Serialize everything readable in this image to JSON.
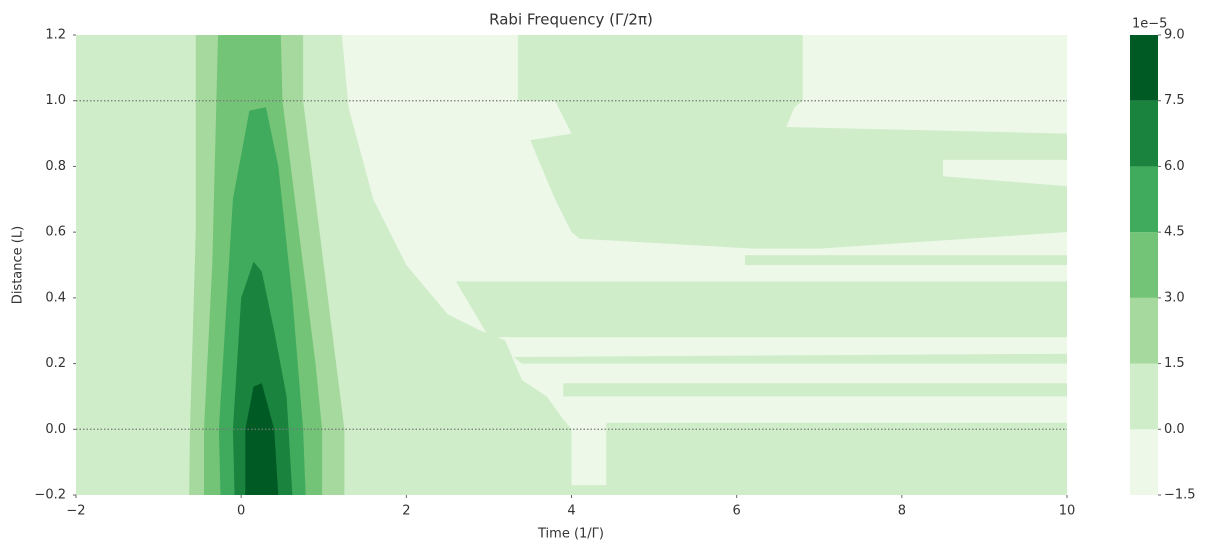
{
  "chart_data": {
    "type": "contourf",
    "title": "Rabi Frequency (Γ/2π)",
    "xlabel": "Time (1/Γ)",
    "ylabel": "Distance (L)",
    "xlim": [
      -2,
      10
    ],
    "ylim": [
      -0.2,
      1.2
    ],
    "xticks": [
      {
        "value": -2,
        "label": "−2"
      },
      0,
      2,
      4,
      6,
      8,
      10
    ],
    "yticks": [
      {
        "value": -0.2,
        "label": "−0.2"
      },
      {
        "value": 0,
        "label": "0.0"
      },
      {
        "value": 0.2,
        "label": "0.2"
      },
      {
        "value": 0.4,
        "label": "0.4"
      },
      {
        "value": 0.6,
        "label": "0.6"
      },
      {
        "value": 0.8,
        "label": "0.8"
      },
      {
        "value": 1.0,
        "label": "1.0"
      },
      {
        "value": 1.2,
        "label": "1.2"
      }
    ],
    "hlines": [
      1.0,
      0.0
    ],
    "colorbar_offset": "1e−5",
    "levels": [
      {
        "value": -1.5,
        "label": "−1.5"
      },
      {
        "value": 0,
        "label": "0.0"
      },
      {
        "value": 1.5,
        "label": "1.5"
      },
      {
        "value": 3,
        "label": "3.0"
      },
      {
        "value": 4.5,
        "label": "4.5"
      },
      {
        "value": 6,
        "label": "6.0"
      },
      {
        "value": 7.5,
        "label": "7.5"
      },
      {
        "value": 9,
        "label": "9.0"
      }
    ],
    "colors": [
      "#edf8e9",
      "#d0edca",
      "#a5d99d",
      "#73c476",
      "#40aa5d",
      "#1a843f",
      "#005a24"
    ],
    "regions": [
      {
        "range": [
          0,
          1.5
        ],
        "points": [
          [
            -2,
            -0.2
          ],
          [
            10,
            -0.2
          ],
          [
            10,
            1.2
          ],
          [
            -2,
            1.2
          ]
        ]
      },
      {
        "range": [
          -1.5,
          0
        ],
        "points": [
          [
            1.22,
            1.2
          ],
          [
            10,
            1.2
          ],
          [
            10,
            0.02
          ],
          [
            4.42,
            0.02
          ],
          [
            4.42,
            -0.17
          ],
          [
            4.0,
            -0.17
          ],
          [
            4.0,
            0.0
          ],
          [
            3.9,
            0.03
          ],
          [
            3.7,
            0.1
          ],
          [
            3.4,
            0.15
          ],
          [
            3.2,
            0.27
          ],
          [
            2.9,
            0.3
          ],
          [
            2.5,
            0.35
          ],
          [
            2.0,
            0.5
          ],
          [
            1.6,
            0.7
          ],
          [
            1.3,
            0.98
          ]
        ]
      },
      {
        "range": [
          0,
          1.5
        ],
        "points": [
          [
            3.35,
            1.2
          ],
          [
            6.8,
            1.2
          ],
          [
            6.8,
            1.0
          ],
          [
            6.7,
            0.98
          ],
          [
            6.6,
            0.92
          ],
          [
            10,
            0.9
          ],
          [
            10,
            0.82
          ],
          [
            8.5,
            0.82
          ],
          [
            8.5,
            0.77
          ],
          [
            10,
            0.74
          ],
          [
            10,
            0.6
          ],
          [
            7.0,
            0.55
          ],
          [
            6.2,
            0.55
          ],
          [
            4.1,
            0.58
          ],
          [
            4.0,
            0.6
          ],
          [
            3.8,
            0.7
          ],
          [
            3.5,
            0.88
          ],
          [
            4.0,
            0.9
          ],
          [
            3.8,
            1.0
          ],
          [
            3.35,
            1.0
          ]
        ]
      },
      {
        "range": [
          0,
          1.5
        ],
        "points": [
          [
            6.1,
            0.53
          ],
          [
            10,
            0.53
          ],
          [
            10,
            0.5
          ],
          [
            6.1,
            0.5
          ]
        ]
      },
      {
        "range": [
          0,
          1.5
        ],
        "points": [
          [
            2.6,
            0.45
          ],
          [
            10,
            0.45
          ],
          [
            10,
            0.28
          ],
          [
            3.0,
            0.28
          ]
        ]
      },
      {
        "range": [
          0,
          1.5
        ],
        "points": [
          [
            3.3,
            0.22
          ],
          [
            10,
            0.23
          ],
          [
            10,
            0.2
          ],
          [
            3.4,
            0.2
          ]
        ]
      },
      {
        "range": [
          0,
          1.5
        ],
        "points": [
          [
            3.9,
            0.14
          ],
          [
            10,
            0.14
          ],
          [
            10,
            0.1
          ],
          [
            3.9,
            0.1
          ]
        ]
      },
      {
        "range": [
          1.5,
          3
        ],
        "points": [
          [
            -0.55,
            1.2
          ],
          [
            0.75,
            1.2
          ],
          [
            0.75,
            1.0
          ],
          [
            1.05,
            0.4
          ],
          [
            1.25,
            0.0
          ],
          [
            1.25,
            -0.2
          ],
          [
            -0.63,
            -0.2
          ],
          [
            -0.62,
            0.0
          ],
          [
            -0.55,
            0.6
          ]
        ]
      },
      {
        "range": [
          3,
          4.5
        ],
        "points": [
          [
            -0.28,
            1.2
          ],
          [
            0.48,
            1.2
          ],
          [
            0.5,
            1.0
          ],
          [
            0.7,
            0.6
          ],
          [
            0.9,
            0.2
          ],
          [
            0.98,
            0.0
          ],
          [
            0.98,
            -0.2
          ],
          [
            -0.45,
            -0.2
          ],
          [
            -0.45,
            0.0
          ],
          [
            -0.35,
            0.5
          ]
        ]
      },
      {
        "range": [
          4.5,
          6
        ],
        "points": [
          [
            0.1,
            0.97
          ],
          [
            0.3,
            0.98
          ],
          [
            0.45,
            0.8
          ],
          [
            0.62,
            0.4
          ],
          [
            0.75,
            0.0
          ],
          [
            0.78,
            -0.2
          ],
          [
            -0.25,
            -0.2
          ],
          [
            -0.27,
            0.0
          ],
          [
            -0.1,
            0.7
          ]
        ]
      },
      {
        "range": [
          6,
          7.5
        ],
        "points": [
          [
            0.15,
            0.51
          ],
          [
            0.25,
            0.48
          ],
          [
            0.4,
            0.3
          ],
          [
            0.55,
            0.1
          ],
          [
            0.62,
            -0.2
          ],
          [
            -0.08,
            -0.2
          ],
          [
            -0.1,
            0.0
          ],
          [
            0.0,
            0.4
          ]
        ]
      },
      {
        "range": [
          7.5,
          9
        ],
        "points": [
          [
            0.15,
            0.13
          ],
          [
            0.25,
            0.14
          ],
          [
            0.4,
            0.0
          ],
          [
            0.45,
            -0.2
          ],
          [
            0.05,
            -0.2
          ],
          [
            0.05,
            0.0
          ]
        ]
      }
    ]
  }
}
